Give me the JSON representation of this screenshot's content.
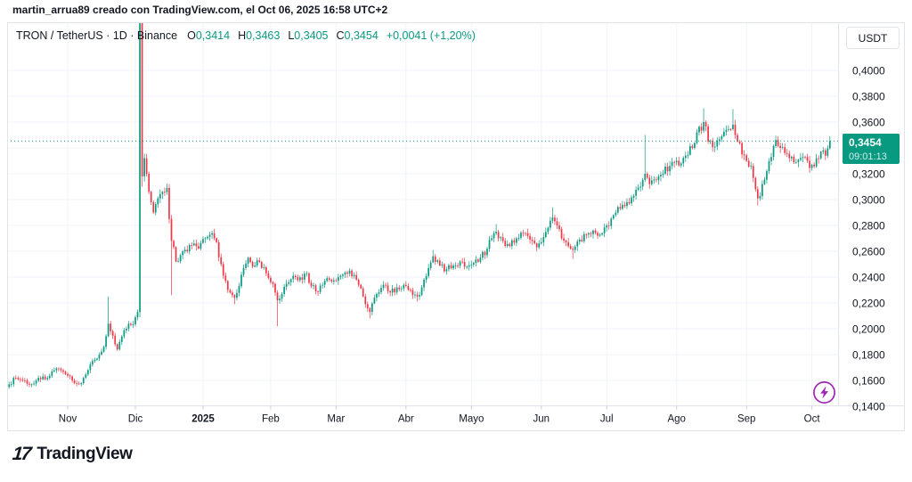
{
  "attribution": "martin_arrua89 creado con TradingView.com, el Oct 06, 2025 16:58 UTC+2",
  "toolbar": {
    "currency_button": "USDT"
  },
  "legend": {
    "title": "TRON / TetherUS · 1D · Binance",
    "ohlc": [
      {
        "k": "O",
        "v": "0,3414"
      },
      {
        "k": "H",
        "v": "0,3463"
      },
      {
        "k": "L",
        "v": "0,3405"
      },
      {
        "k": "C",
        "v": "0,3454"
      }
    ],
    "change": "+0,0041 (+1,20%)"
  },
  "price_scale": {
    "ticks": [
      {
        "label": "0,4000",
        "price": 0.4
      },
      {
        "label": "0,3800",
        "price": 0.38
      },
      {
        "label": "0,3600",
        "price": 0.36
      },
      {
        "label": "0,3200",
        "price": 0.32
      },
      {
        "label": "0,3000",
        "price": 0.3
      },
      {
        "label": "0,2800",
        "price": 0.28
      },
      {
        "label": "0,2600",
        "price": 0.26
      },
      {
        "label": "0,2400",
        "price": 0.24
      },
      {
        "label": "0,2200",
        "price": 0.22
      },
      {
        "label": "0,2000",
        "price": 0.2
      },
      {
        "label": "0,1800",
        "price": 0.18
      },
      {
        "label": "0,1600",
        "price": 0.16
      },
      {
        "label": "0,1400",
        "price": 0.14
      }
    ],
    "badge": {
      "price": "0,3454",
      "countdown": "09:01:13"
    }
  },
  "time_scale": {
    "ticks": [
      {
        "label": "Nov",
        "day": 26,
        "bold": false
      },
      {
        "label": "Dic",
        "day": 56,
        "bold": false
      },
      {
        "label": "2025",
        "day": 86,
        "bold": true
      },
      {
        "label": "Feb",
        "day": 116,
        "bold": false
      },
      {
        "label": "Mar",
        "day": 145,
        "bold": false
      },
      {
        "label": "Abr",
        "day": 176,
        "bold": false
      },
      {
        "label": "Mayo",
        "day": 205,
        "bold": false
      },
      {
        "label": "Jun",
        "day": 236,
        "bold": false
      },
      {
        "label": "Jul",
        "day": 265,
        "bold": false
      },
      {
        "label": "Ago",
        "day": 296,
        "bold": false
      },
      {
        "label": "Sep",
        "day": 327,
        "bold": false
      },
      {
        "label": "Oct",
        "day": 356,
        "bold": false
      }
    ]
  },
  "footer": {
    "logo_mark": "17",
    "logo_text": "TradingView"
  },
  "boost_button": {
    "icon": "lightning-icon"
  },
  "colors": {
    "up": "#089981",
    "down": "#f23645",
    "grid": "#f0f3fa",
    "axis_text": "#131722",
    "border": "#e0e3eb",
    "tick": "#c9cdd6",
    "accent": "#089981",
    "boost": "#9c27b0",
    "background": "#ffffff"
  },
  "chart_data": {
    "type": "candlestick",
    "title": "TRON / TetherUS · 1D · Binance",
    "symbol": "TRON / TetherUS",
    "interval": "1D",
    "exchange": "Binance",
    "quote_currency": "USDT",
    "open": 0.3414,
    "high": 0.3463,
    "low": 0.3405,
    "close": 0.3454,
    "change_abs": 0.0041,
    "change_pct": 1.2,
    "last_price": 0.3454,
    "countdown": "09:01:13",
    "x_range": {
      "start_label": "Oct 2024",
      "end_label": "Oct 2025",
      "days": 365
    },
    "y_range": [
      0.14,
      0.44
    ],
    "grid": true,
    "legend_position": "top-left",
    "keyframes": [
      [
        0,
        0.157
      ],
      [
        3,
        0.162
      ],
      [
        6,
        0.16
      ],
      [
        10,
        0.157
      ],
      [
        13,
        0.162
      ],
      [
        16,
        0.161
      ],
      [
        19,
        0.167
      ],
      [
        22,
        0.169
      ],
      [
        25,
        0.165
      ],
      [
        28,
        0.16
      ],
      [
        31,
        0.157
      ],
      [
        33,
        0.162
      ],
      [
        35,
        0.168
      ],
      [
        37,
        0.175
      ],
      [
        40,
        0.18
      ],
      [
        42,
        0.186
      ],
      [
        44,
        0.204
      ],
      [
        45,
        0.198
      ],
      [
        47,
        0.188
      ],
      [
        48,
        0.184
      ],
      [
        50,
        0.194
      ],
      [
        52,
        0.2
      ],
      [
        54,
        0.203
      ],
      [
        56,
        0.209
      ],
      [
        57,
        0.213
      ],
      [
        58,
        0.437
      ],
      [
        59,
        0.318
      ],
      [
        60,
        0.332
      ],
      [
        61,
        0.32
      ],
      [
        62,
        0.306
      ],
      [
        63,
        0.298
      ],
      [
        64,
        0.29
      ],
      [
        66,
        0.301
      ],
      [
        68,
        0.306
      ],
      [
        70,
        0.309
      ],
      [
        71,
        0.285
      ],
      [
        72,
        0.268
      ],
      [
        74,
        0.252
      ],
      [
        76,
        0.257
      ],
      [
        79,
        0.26
      ],
      [
        82,
        0.266
      ],
      [
        84,
        0.262
      ],
      [
        87,
        0.27
      ],
      [
        90,
        0.274
      ],
      [
        92,
        0.267
      ],
      [
        94,
        0.25
      ],
      [
        96,
        0.237
      ],
      [
        98,
        0.228
      ],
      [
        100,
        0.224
      ],
      [
        102,
        0.233
      ],
      [
        104,
        0.247
      ],
      [
        106,
        0.255
      ],
      [
        108,
        0.248
      ],
      [
        110,
        0.253
      ],
      [
        112,
        0.247
      ],
      [
        114,
        0.243
      ],
      [
        116,
        0.236
      ],
      [
        118,
        0.228
      ],
      [
        119,
        0.222
      ],
      [
        121,
        0.227
      ],
      [
        124,
        0.236
      ],
      [
        127,
        0.24
      ],
      [
        130,
        0.238
      ],
      [
        132,
        0.243
      ],
      [
        134,
        0.233
      ],
      [
        136,
        0.229
      ],
      [
        139,
        0.234
      ],
      [
        142,
        0.238
      ],
      [
        145,
        0.237
      ],
      [
        148,
        0.242
      ],
      [
        151,
        0.245
      ],
      [
        154,
        0.238
      ],
      [
        157,
        0.225
      ],
      [
        160,
        0.213
      ],
      [
        163,
        0.227
      ],
      [
        166,
        0.234
      ],
      [
        169,
        0.228
      ],
      [
        172,
        0.232
      ],
      [
        175,
        0.234
      ],
      [
        178,
        0.23
      ],
      [
        181,
        0.225
      ],
      [
        183,
        0.232
      ],
      [
        186,
        0.247
      ],
      [
        188,
        0.256
      ],
      [
        191,
        0.249
      ],
      [
        194,
        0.246
      ],
      [
        197,
        0.249
      ],
      [
        200,
        0.252
      ],
      [
        203,
        0.248
      ],
      [
        206,
        0.251
      ],
      [
        209,
        0.255
      ],
      [
        212,
        0.262
      ],
      [
        214,
        0.27
      ],
      [
        216,
        0.275
      ],
      [
        219,
        0.268
      ],
      [
        222,
        0.264
      ],
      [
        225,
        0.27
      ],
      [
        228,
        0.274
      ],
      [
        231,
        0.269
      ],
      [
        234,
        0.263
      ],
      [
        236,
        0.267
      ],
      [
        238,
        0.275
      ],
      [
        241,
        0.286
      ],
      [
        243,
        0.28
      ],
      [
        245,
        0.27
      ],
      [
        248,
        0.264
      ],
      [
        250,
        0.261
      ],
      [
        253,
        0.269
      ],
      [
        256,
        0.273
      ],
      [
        259,
        0.276
      ],
      [
        261,
        0.272
      ],
      [
        263,
        0.274
      ],
      [
        265,
        0.28
      ],
      [
        268,
        0.288
      ],
      [
        271,
        0.293
      ],
      [
        274,
        0.298
      ],
      [
        277,
        0.303
      ],
      [
        280,
        0.31
      ],
      [
        282,
        0.32
      ],
      [
        284,
        0.312
      ],
      [
        287,
        0.315
      ],
      [
        290,
        0.32
      ],
      [
        293,
        0.326
      ],
      [
        296,
        0.33
      ],
      [
        298,
        0.328
      ],
      [
        300,
        0.334
      ],
      [
        303,
        0.34
      ],
      [
        305,
        0.352
      ],
      [
        308,
        0.36
      ],
      [
        310,
        0.345
      ],
      [
        313,
        0.341
      ],
      [
        316,
        0.349
      ],
      [
        318,
        0.354
      ],
      [
        321,
        0.358
      ],
      [
        323,
        0.345
      ],
      [
        325,
        0.335
      ],
      [
        327,
        0.33
      ],
      [
        329,
        0.326
      ],
      [
        331,
        0.308
      ],
      [
        332,
        0.301
      ],
      [
        334,
        0.312
      ],
      [
        336,
        0.322
      ],
      [
        338,
        0.333
      ],
      [
        340,
        0.346
      ],
      [
        342,
        0.34
      ],
      [
        344,
        0.336
      ],
      [
        346,
        0.332
      ],
      [
        349,
        0.329
      ],
      [
        352,
        0.333
      ],
      [
        354,
        0.33
      ],
      [
        356,
        0.327
      ],
      [
        358,
        0.332
      ],
      [
        360,
        0.337
      ],
      [
        362,
        0.334
      ],
      [
        364,
        0.3454
      ]
    ],
    "wick_overrides": [
      [
        44,
        "high",
        0.225
      ],
      [
        58,
        "high",
        0.445
      ],
      [
        58,
        "low",
        0.209
      ],
      [
        59,
        "low",
        0.31
      ],
      [
        72,
        "low",
        0.226
      ],
      [
        100,
        "low",
        0.219
      ],
      [
        119,
        "low",
        0.202
      ],
      [
        160,
        "low",
        0.208
      ],
      [
        181,
        "low",
        0.221
      ],
      [
        188,
        "high",
        0.261
      ],
      [
        216,
        "high",
        0.281
      ],
      [
        241,
        "high",
        0.294
      ],
      [
        250,
        "low",
        0.254
      ],
      [
        282,
        "high",
        0.35
      ],
      [
        308,
        "high",
        0.3705
      ],
      [
        321,
        "high",
        0.37
      ],
      [
        332,
        "low",
        0.2955
      ],
      [
        340,
        "high",
        0.3495
      ]
    ]
  }
}
